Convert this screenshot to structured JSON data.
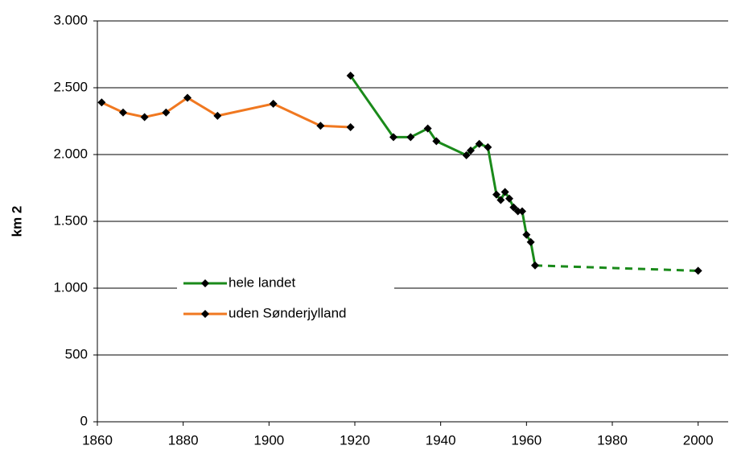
{
  "chart_data": {
    "type": "line",
    "y_label": "km 2",
    "xlim": [
      1860,
      2007
    ],
    "xticks": [
      1860,
      1880,
      1900,
      1920,
      1940,
      1960,
      1980,
      2000
    ],
    "ylim": [
      0,
      3000
    ],
    "yticks": [
      0,
      500,
      {
        "value": 1000,
        "label": "1.000"
      },
      {
        "value": 1500,
        "label": "1.500"
      },
      {
        "value": 2000,
        "label": "2.000"
      },
      {
        "value": 2500,
        "label": "2.500"
      },
      {
        "value": 3000,
        "label": "3.000"
      }
    ],
    "grid": true,
    "legend": "center-left",
    "series": [
      {
        "name": "hele landet",
        "color": "#1a8a1a",
        "x": [
          1919,
          1929,
          1933,
          1937,
          1939,
          1946,
          1947,
          1949,
          1951,
          1953,
          1954,
          1955,
          1956,
          1957,
          1958,
          1959,
          1960,
          1961,
          1962,
          2000
        ],
        "values": [
          2590,
          2130,
          2130,
          2195,
          2100,
          1995,
          2030,
          2080,
          2055,
          1700,
          1660,
          1720,
          1670,
          1605,
          1575,
          1575,
          1400,
          1345,
          1170,
          1130
        ],
        "dashed_after": 1962
      },
      {
        "name": "uden Sønderjylland",
        "color": "#f07820",
        "x": [
          1861,
          1866,
          1871,
          1876,
          1881,
          1888,
          1901,
          1912,
          1919
        ],
        "values": [
          2390,
          2315,
          2280,
          2315,
          2425,
          2290,
          2380,
          2215,
          2205
        ]
      }
    ]
  }
}
